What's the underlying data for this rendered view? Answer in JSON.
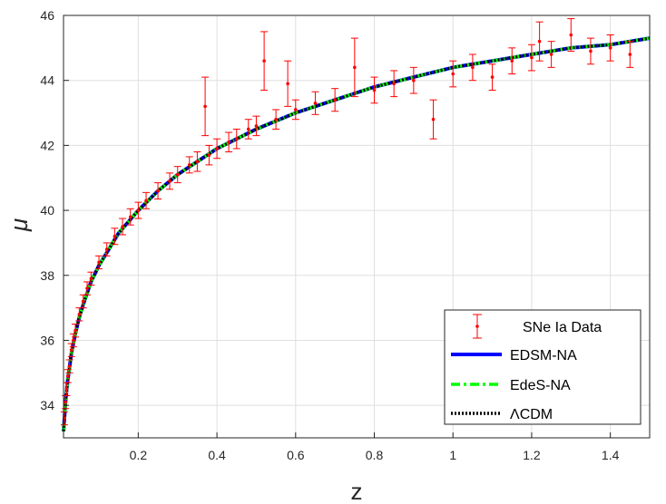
{
  "chart_data": {
    "type": "scatter",
    "xlabel": "z",
    "ylabel": "μ",
    "xlim": [
      0.01,
      1.5
    ],
    "ylim": [
      33,
      46
    ],
    "xticks": [
      "0.2",
      "0.4",
      "0.6",
      "0.8",
      "1",
      "1.2",
      "1.4"
    ],
    "yticks": [
      "34",
      "36",
      "38",
      "40",
      "42",
      "44",
      "46"
    ],
    "grid": true,
    "legend_position": "bottom-right",
    "data_points": [
      {
        "z": 0.012,
        "mu": 33.6,
        "err": 0.2
      },
      {
        "z": 0.015,
        "mu": 34.1,
        "err": 0.2
      },
      {
        "z": 0.018,
        "mu": 34.5,
        "err": 0.2
      },
      {
        "z": 0.021,
        "mu": 34.9,
        "err": 0.2
      },
      {
        "z": 0.025,
        "mu": 35.2,
        "err": 0.2
      },
      {
        "z": 0.03,
        "mu": 35.7,
        "err": 0.2
      },
      {
        "z": 0.035,
        "mu": 36.0,
        "err": 0.2
      },
      {
        "z": 0.04,
        "mu": 36.3,
        "err": 0.2
      },
      {
        "z": 0.05,
        "mu": 36.8,
        "err": 0.2
      },
      {
        "z": 0.06,
        "mu": 37.2,
        "err": 0.2
      },
      {
        "z": 0.07,
        "mu": 37.6,
        "err": 0.2
      },
      {
        "z": 0.08,
        "mu": 37.9,
        "err": 0.2
      },
      {
        "z": 0.1,
        "mu": 38.4,
        "err": 0.2
      },
      {
        "z": 0.12,
        "mu": 38.8,
        "err": 0.2
      },
      {
        "z": 0.14,
        "mu": 39.2,
        "err": 0.25
      },
      {
        "z": 0.16,
        "mu": 39.5,
        "err": 0.25
      },
      {
        "z": 0.18,
        "mu": 39.8,
        "err": 0.25
      },
      {
        "z": 0.2,
        "mu": 40.0,
        "err": 0.25
      },
      {
        "z": 0.22,
        "mu": 40.3,
        "err": 0.25
      },
      {
        "z": 0.25,
        "mu": 40.6,
        "err": 0.25
      },
      {
        "z": 0.28,
        "mu": 40.9,
        "err": 0.25
      },
      {
        "z": 0.3,
        "mu": 41.1,
        "err": 0.25
      },
      {
        "z": 0.33,
        "mu": 41.4,
        "err": 0.25
      },
      {
        "z": 0.35,
        "mu": 41.5,
        "err": 0.3
      },
      {
        "z": 0.37,
        "mu": 43.2,
        "err": 0.9
      },
      {
        "z": 0.38,
        "mu": 41.7,
        "err": 0.3
      },
      {
        "z": 0.4,
        "mu": 41.9,
        "err": 0.3
      },
      {
        "z": 0.43,
        "mu": 42.1,
        "err": 0.3
      },
      {
        "z": 0.45,
        "mu": 42.2,
        "err": 0.3
      },
      {
        "z": 0.48,
        "mu": 42.5,
        "err": 0.3
      },
      {
        "z": 0.5,
        "mu": 42.6,
        "err": 0.3
      },
      {
        "z": 0.52,
        "mu": 44.6,
        "err": 0.9
      },
      {
        "z": 0.55,
        "mu": 42.8,
        "err": 0.3
      },
      {
        "z": 0.58,
        "mu": 43.9,
        "err": 0.7
      },
      {
        "z": 0.6,
        "mu": 43.1,
        "err": 0.3
      },
      {
        "z": 0.65,
        "mu": 43.3,
        "err": 0.35
      },
      {
        "z": 0.7,
        "mu": 43.4,
        "err": 0.35
      },
      {
        "z": 0.75,
        "mu": 44.4,
        "err": 0.9
      },
      {
        "z": 0.8,
        "mu": 43.7,
        "err": 0.4
      },
      {
        "z": 0.85,
        "mu": 43.9,
        "err": 0.4
      },
      {
        "z": 0.9,
        "mu": 44.0,
        "err": 0.4
      },
      {
        "z": 0.95,
        "mu": 42.8,
        "err": 0.6
      },
      {
        "z": 1.0,
        "mu": 44.2,
        "err": 0.4
      },
      {
        "z": 1.05,
        "mu": 44.4,
        "err": 0.4
      },
      {
        "z": 1.1,
        "mu": 44.1,
        "err": 0.4
      },
      {
        "z": 1.15,
        "mu": 44.6,
        "err": 0.4
      },
      {
        "z": 1.2,
        "mu": 44.7,
        "err": 0.4
      },
      {
        "z": 1.22,
        "mu": 45.2,
        "err": 0.6
      },
      {
        "z": 1.25,
        "mu": 44.8,
        "err": 0.4
      },
      {
        "z": 1.3,
        "mu": 45.4,
        "err": 0.5
      },
      {
        "z": 1.35,
        "mu": 44.9,
        "err": 0.4
      },
      {
        "z": 1.4,
        "mu": 45.0,
        "err": 0.4
      },
      {
        "z": 1.45,
        "mu": 44.8,
        "err": 0.4
      }
    ],
    "series": [
      {
        "name": "SNe Ia Data",
        "kind": "errorbar",
        "color": "#ff0000"
      },
      {
        "name": "EDSM-NA",
        "kind": "line",
        "color": "#0000ff",
        "style": "solid"
      },
      {
        "name": "EdeS-NA",
        "kind": "line",
        "color": "#00ff00",
        "style": "dashdot"
      },
      {
        "name": "ΛCDM",
        "kind": "line",
        "color": "#000000",
        "style": "dotted"
      }
    ],
    "model_curve": {
      "z": [
        0.01,
        0.015,
        0.02,
        0.03,
        0.04,
        0.05,
        0.06,
        0.08,
        0.1,
        0.12,
        0.15,
        0.2,
        0.25,
        0.3,
        0.35,
        0.4,
        0.5,
        0.6,
        0.7,
        0.8,
        0.9,
        1.0,
        1.1,
        1.2,
        1.3,
        1.4,
        1.5
      ],
      "mu": [
        33.2,
        34.1,
        34.7,
        35.6,
        36.2,
        36.7,
        37.1,
        37.8,
        38.3,
        38.7,
        39.3,
        40.0,
        40.6,
        41.1,
        41.5,
        41.9,
        42.5,
        43.0,
        43.4,
        43.8,
        44.1,
        44.4,
        44.6,
        44.8,
        45.0,
        45.1,
        45.3
      ]
    }
  }
}
